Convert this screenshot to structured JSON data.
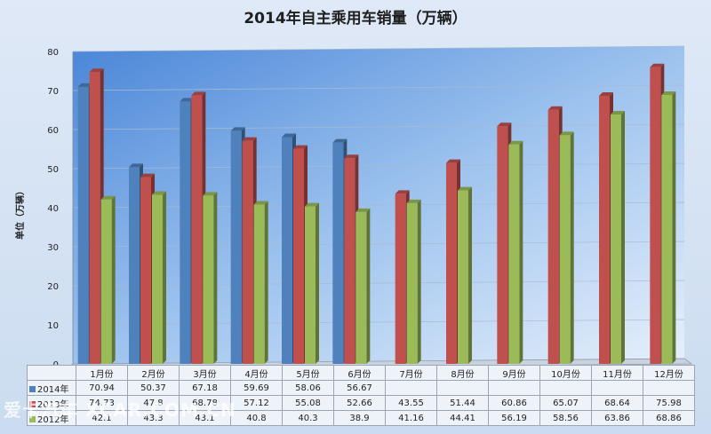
{
  "chart_data": {
    "type": "bar",
    "title": "2014年自主乘用车销量（万辆）",
    "ylabel": "单位（万辆）",
    "xlabel": "",
    "ylim": [
      0,
      80
    ],
    "yticks": [
      "0",
      "10",
      "20",
      "30",
      "40",
      "50",
      "60",
      "70",
      "80"
    ],
    "categories": [
      "1月份",
      "2月份",
      "3月份",
      "4月份",
      "5月份",
      "6月份",
      "7月份",
      "8月份",
      "9月份",
      "10月份",
      "11月份",
      "12月份"
    ],
    "series": [
      {
        "name": "2014年",
        "color": "#4f81bd",
        "values": [
          70.94,
          50.37,
          67.18,
          59.69,
          58.06,
          56.67,
          null,
          null,
          null,
          null,
          null,
          null
        ],
        "labels": [
          "70.94",
          "50.37",
          "67.18",
          "59.69",
          "58.06",
          "56.67",
          "",
          "",
          "",
          "",
          "",
          ""
        ]
      },
      {
        "name": "2013年",
        "color": "#c0504d",
        "values": [
          74.73,
          47.8,
          68.78,
          57.12,
          55.08,
          52.66,
          43.55,
          51.44,
          60.86,
          65.07,
          68.64,
          75.98
        ],
        "labels": [
          "74.73",
          "47.8",
          "68.78",
          "57.12",
          "55.08",
          "52.66",
          "43.55",
          "51.44",
          "60.86",
          "65.07",
          "68.64",
          "75.98"
        ]
      },
      {
        "name": "2012年",
        "color": "#9bbb59",
        "values": [
          42.1,
          43.3,
          43.1,
          40.8,
          40.3,
          38.9,
          41.16,
          44.41,
          56.19,
          58.56,
          63.86,
          68.86
        ],
        "labels": [
          "42.1",
          "43.3",
          "43.1",
          "40.8",
          "40.3",
          "38.9",
          "41.16",
          "44.41",
          "56.19",
          "58.56",
          "63.86",
          "68.86"
        ]
      }
    ],
    "legend": "data-table"
  },
  "watermark": "爱卡汽车 XCAR.COM.CN"
}
